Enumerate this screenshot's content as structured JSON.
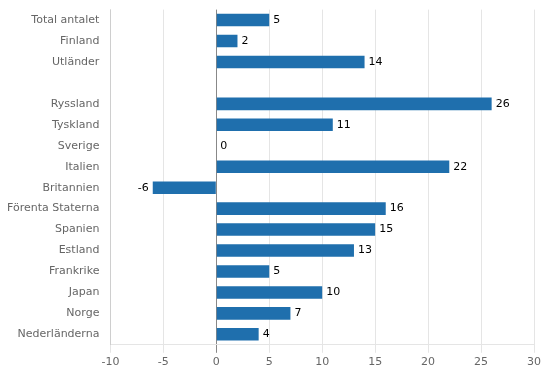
{
  "chart_data": {
    "type": "bar",
    "orientation": "horizontal",
    "categories": [
      "Total antalet",
      "Finland",
      "Utländer",
      null,
      "Ryssland",
      "Tyskland",
      "Sverige",
      "Italien",
      "Britannien",
      "Förenta Staterna",
      "Spanien",
      "Estland",
      "Frankrike",
      "Japan",
      "Norge",
      "Nederländerna"
    ],
    "values": [
      5,
      2,
      14,
      null,
      26,
      11,
      0,
      22,
      -6,
      16,
      15,
      13,
      5,
      10,
      7,
      4
    ],
    "color": "#1F6FAD",
    "xlim": [
      -10,
      30
    ],
    "xticks": [
      -10,
      -5,
      0,
      5,
      10,
      15,
      20,
      25,
      30
    ],
    "grid": "x",
    "data_labels": true
  }
}
